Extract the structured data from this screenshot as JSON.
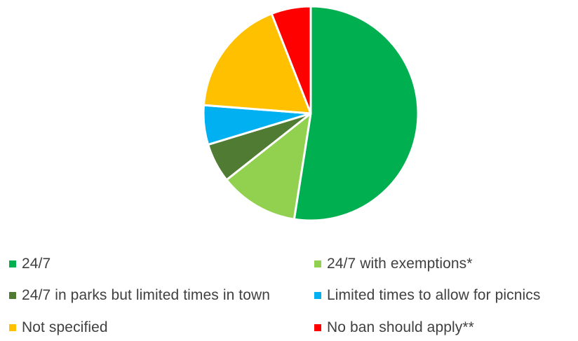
{
  "chart_data": {
    "type": "pie",
    "title": "",
    "start_angle_deg": 0,
    "direction": "clockwise",
    "series": [
      {
        "values": [
          53,
          12,
          6,
          6,
          18,
          6
        ]
      }
    ],
    "categories": [
      "24/7",
      "24/7 with exemptions*",
      "24/7 in parks but limited times in town",
      "Limited times to allow for picnics",
      "Not specified",
      "No ban should apply**"
    ],
    "colors": [
      "#00b050",
      "#92d050",
      "#4f7b32",
      "#00b0f0",
      "#ffc000",
      "#ff0000"
    ],
    "slice_border_color": "#ffffff",
    "legend_position": "bottom",
    "legend_columns": 2
  }
}
